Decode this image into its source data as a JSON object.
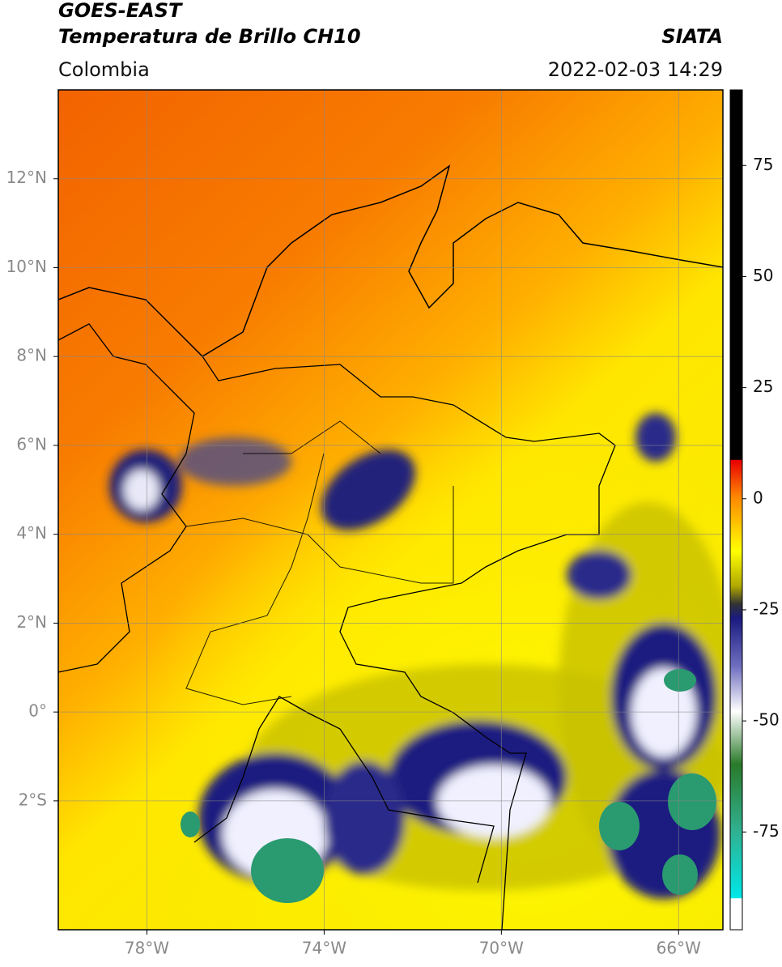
{
  "chart_data": {
    "type": "map",
    "title": "GOES-EAST",
    "subtitle": "Temperatura de Brillo CH10",
    "source": "SIATA",
    "region": "Colombia",
    "datetime": "2022-02-03 14:29",
    "xlim": [
      -80,
      -65
    ],
    "ylim": [
      -4.9,
      14
    ],
    "xticks": [
      {
        "value": -78,
        "label": "78°W"
      },
      {
        "value": -74,
        "label": "74°W"
      },
      {
        "value": -70,
        "label": "70°W"
      },
      {
        "value": -66,
        "label": "66°W"
      }
    ],
    "yticks": [
      {
        "value": 12,
        "label": "12°N"
      },
      {
        "value": 10,
        "label": "10°N"
      },
      {
        "value": 8,
        "label": "8°N"
      },
      {
        "value": 6,
        "label": "6°N"
      },
      {
        "value": 4,
        "label": "4°N"
      },
      {
        "value": 2,
        "label": "2°N"
      },
      {
        "value": 0,
        "label": "0°"
      },
      {
        "value": -2,
        "label": "2°S"
      }
    ],
    "grid": true,
    "colorbar": {
      "lim": [
        -97,
        92
      ],
      "ticks": [
        75,
        50,
        25,
        0,
        -25,
        -50,
        -75
      ]
    }
  }
}
